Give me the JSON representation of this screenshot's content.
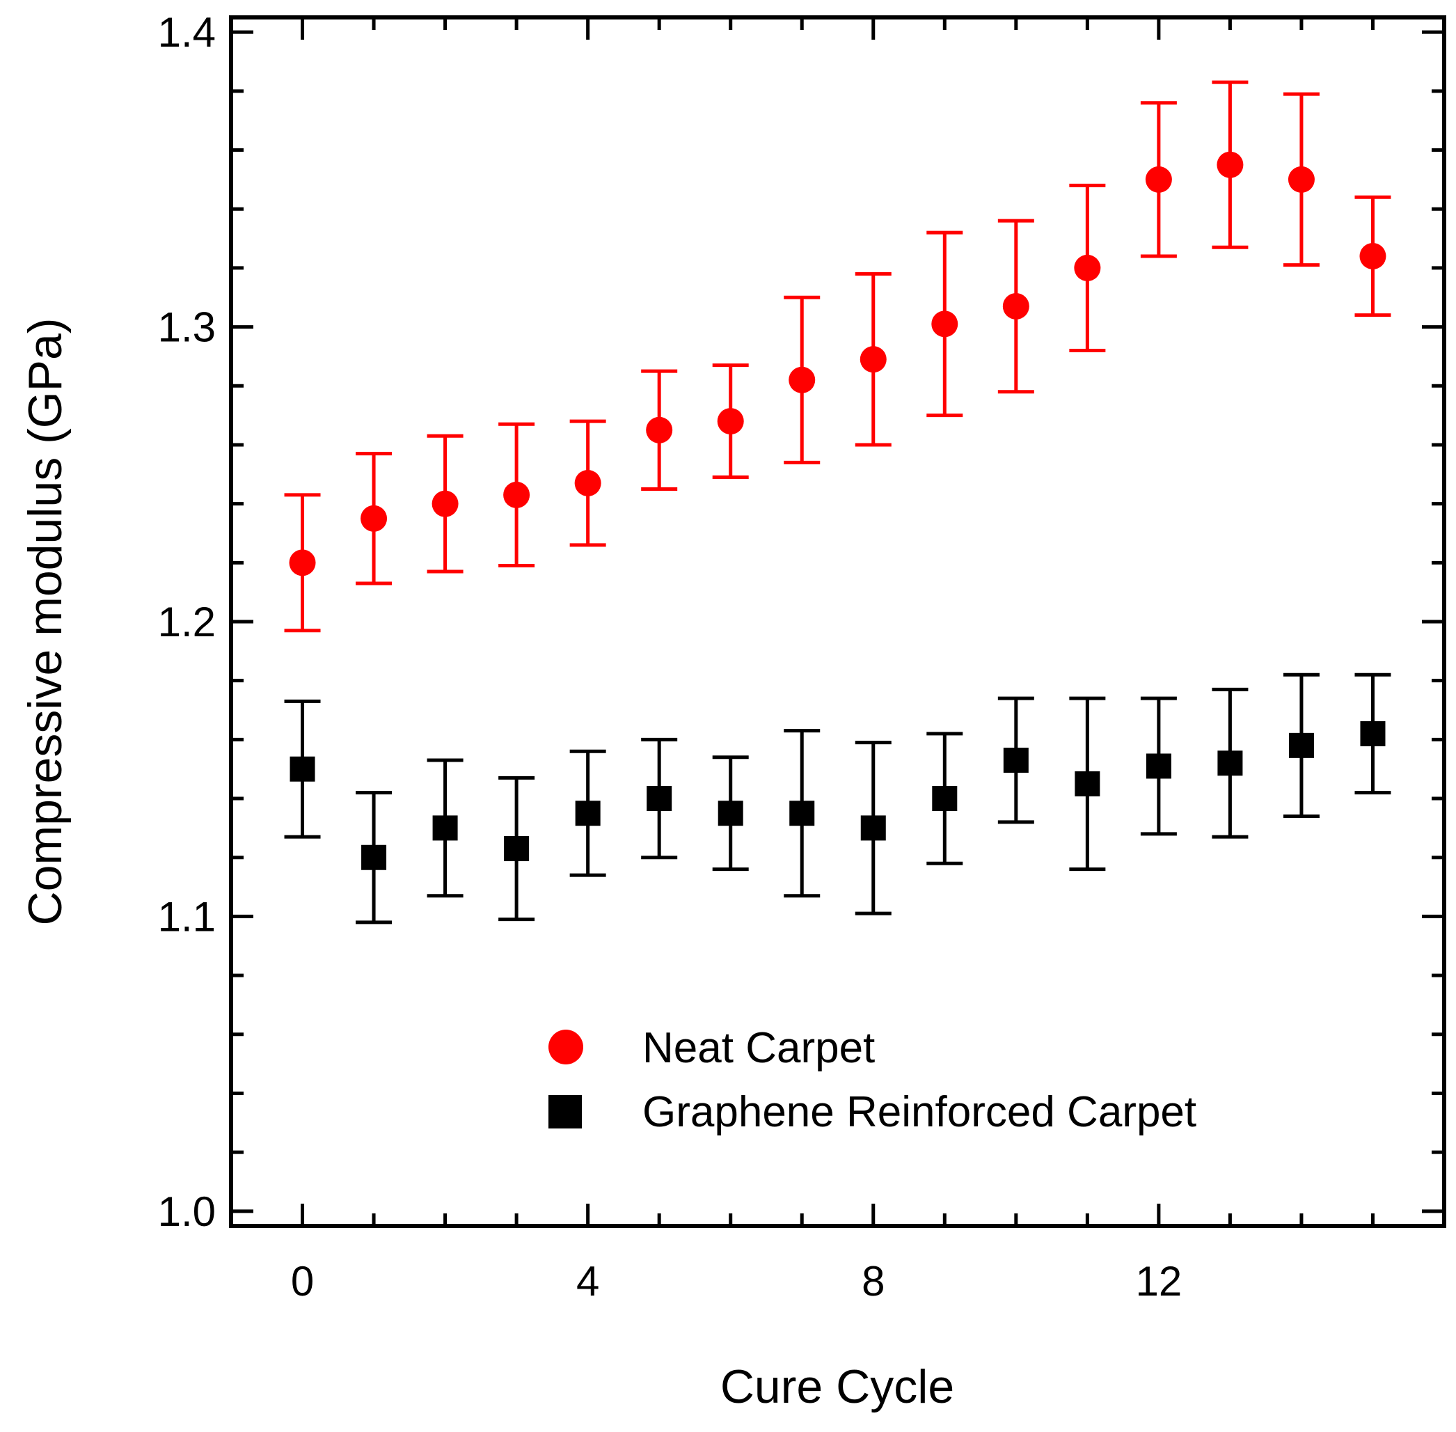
{
  "chart_data": {
    "type": "scatter",
    "title": "",
    "xlabel": "Cure Cycle",
    "ylabel": "Compressive modulus (GPa)",
    "xlim": [
      -1,
      16
    ],
    "ylim": [
      0.995,
      1.405
    ],
    "x_ticks": [
      0,
      4,
      8,
      12
    ],
    "x_tick_labels": [
      "0",
      "4",
      "8",
      "12"
    ],
    "y_ticks": [
      1.0,
      1.1,
      1.2,
      1.3,
      1.4
    ],
    "y_tick_labels": [
      "1.0",
      "1.1",
      "1.2",
      "1.3",
      "1.4"
    ],
    "legend_position": "bottom-center",
    "series": [
      {
        "name": "Neat Carpet",
        "marker": "circle",
        "color": "#ff0000",
        "x": [
          0,
          1,
          2,
          3,
          4,
          5,
          6,
          7,
          8,
          9,
          10,
          11,
          12,
          13,
          14,
          15
        ],
        "y": [
          1.22,
          1.235,
          1.24,
          1.243,
          1.247,
          1.265,
          1.268,
          1.282,
          1.289,
          1.301,
          1.307,
          1.32,
          1.35,
          1.355,
          1.35,
          1.324
        ],
        "err_low": [
          1.197,
          1.213,
          1.217,
          1.219,
          1.226,
          1.245,
          1.249,
          1.254,
          1.26,
          1.27,
          1.278,
          1.292,
          1.324,
          1.327,
          1.321,
          1.304
        ],
        "err_high": [
          1.243,
          1.257,
          1.263,
          1.267,
          1.268,
          1.285,
          1.287,
          1.31,
          1.318,
          1.332,
          1.336,
          1.348,
          1.376,
          1.383,
          1.379,
          1.344
        ]
      },
      {
        "name": "Graphene Reinforced Carpet",
        "marker": "square",
        "color": "#000000",
        "x": [
          0,
          1,
          2,
          3,
          4,
          5,
          6,
          7,
          8,
          9,
          10,
          11,
          12,
          13,
          14,
          15
        ],
        "y": [
          1.15,
          1.12,
          1.13,
          1.123,
          1.135,
          1.14,
          1.135,
          1.135,
          1.13,
          1.14,
          1.153,
          1.145,
          1.151,
          1.152,
          1.158,
          1.162
        ],
        "err_low": [
          1.127,
          1.098,
          1.107,
          1.099,
          1.114,
          1.12,
          1.116,
          1.107,
          1.101,
          1.118,
          1.132,
          1.116,
          1.128,
          1.127,
          1.134,
          1.142
        ],
        "err_high": [
          1.173,
          1.142,
          1.153,
          1.147,
          1.156,
          1.16,
          1.154,
          1.163,
          1.159,
          1.162,
          1.174,
          1.174,
          1.174,
          1.177,
          1.182,
          1.182
        ]
      }
    ]
  }
}
